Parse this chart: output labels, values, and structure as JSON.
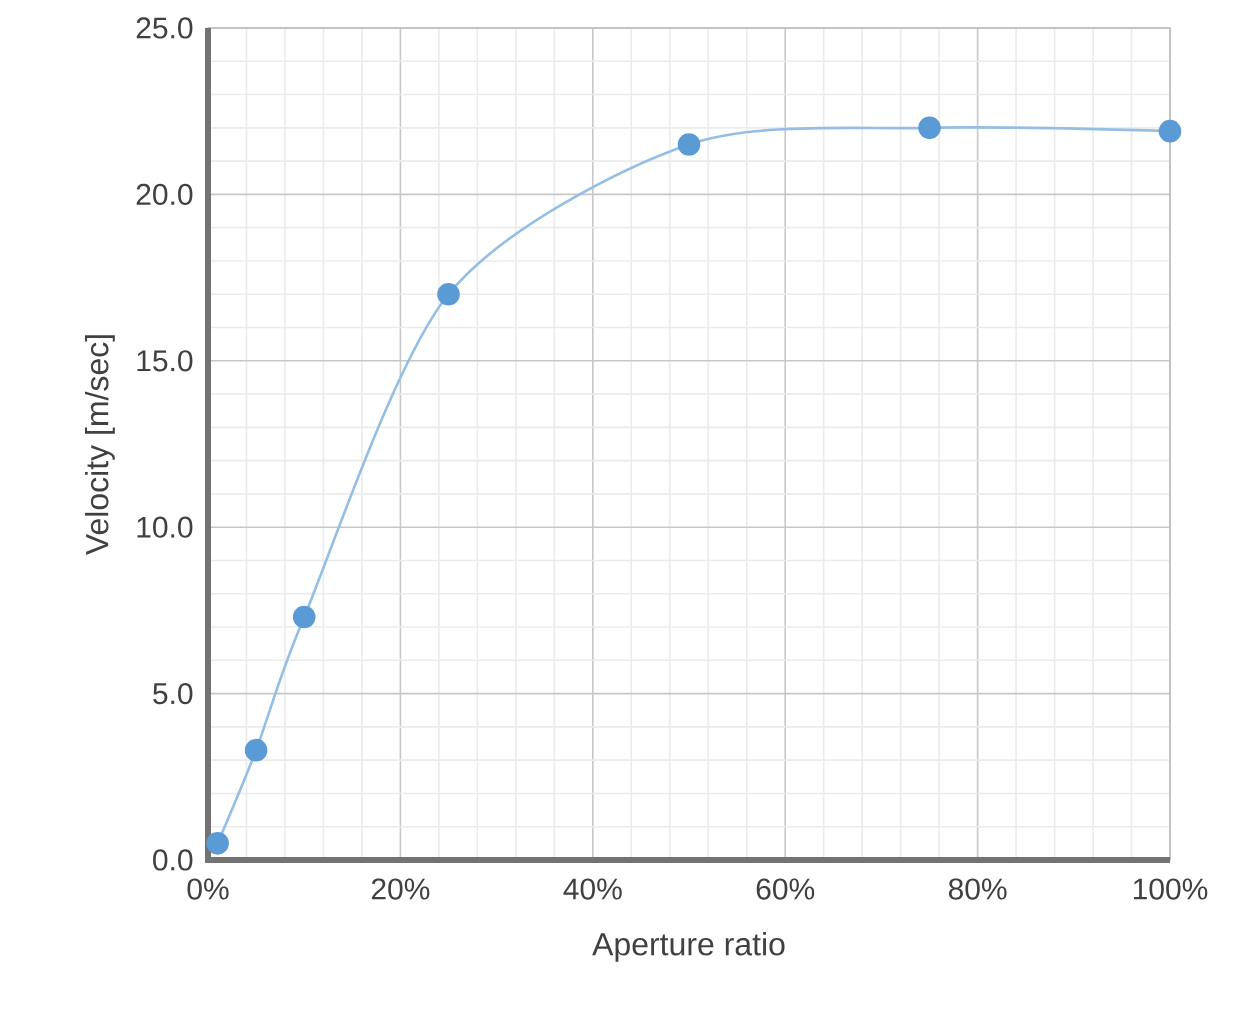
{
  "chart_data": {
    "type": "line",
    "xlabel": "Aperture ratio",
    "ylabel": "Velocity [m/sec]",
    "x": [
      1,
      5,
      10,
      25,
      50,
      75,
      100
    ],
    "series": [
      {
        "color": "#5b9bd5",
        "values": [
          0.5,
          3.3,
          7.3,
          17.0,
          21.5,
          22.0,
          21.9
        ]
      }
    ],
    "xlim": [
      0,
      100
    ],
    "ylim": [
      0,
      25
    ],
    "xticks": [
      {
        "value": 0,
        "label": "0%"
      },
      {
        "value": 20,
        "label": "20%"
      },
      {
        "value": 40,
        "label": "40%"
      },
      {
        "value": 60,
        "label": "60%"
      },
      {
        "value": 80,
        "label": "80%"
      },
      {
        "value": 100,
        "label": "100%"
      }
    ],
    "yticks": [
      {
        "value": 0,
        "label": "0.0"
      },
      {
        "value": 5,
        "label": "5.0"
      },
      {
        "value": 10,
        "label": "10.0"
      },
      {
        "value": 15,
        "label": "15.0"
      },
      {
        "value": 20,
        "label": "20.0"
      },
      {
        "value": 25,
        "label": "25.0"
      }
    ],
    "grid": true,
    "marker": "circle",
    "line_style": "solid"
  }
}
